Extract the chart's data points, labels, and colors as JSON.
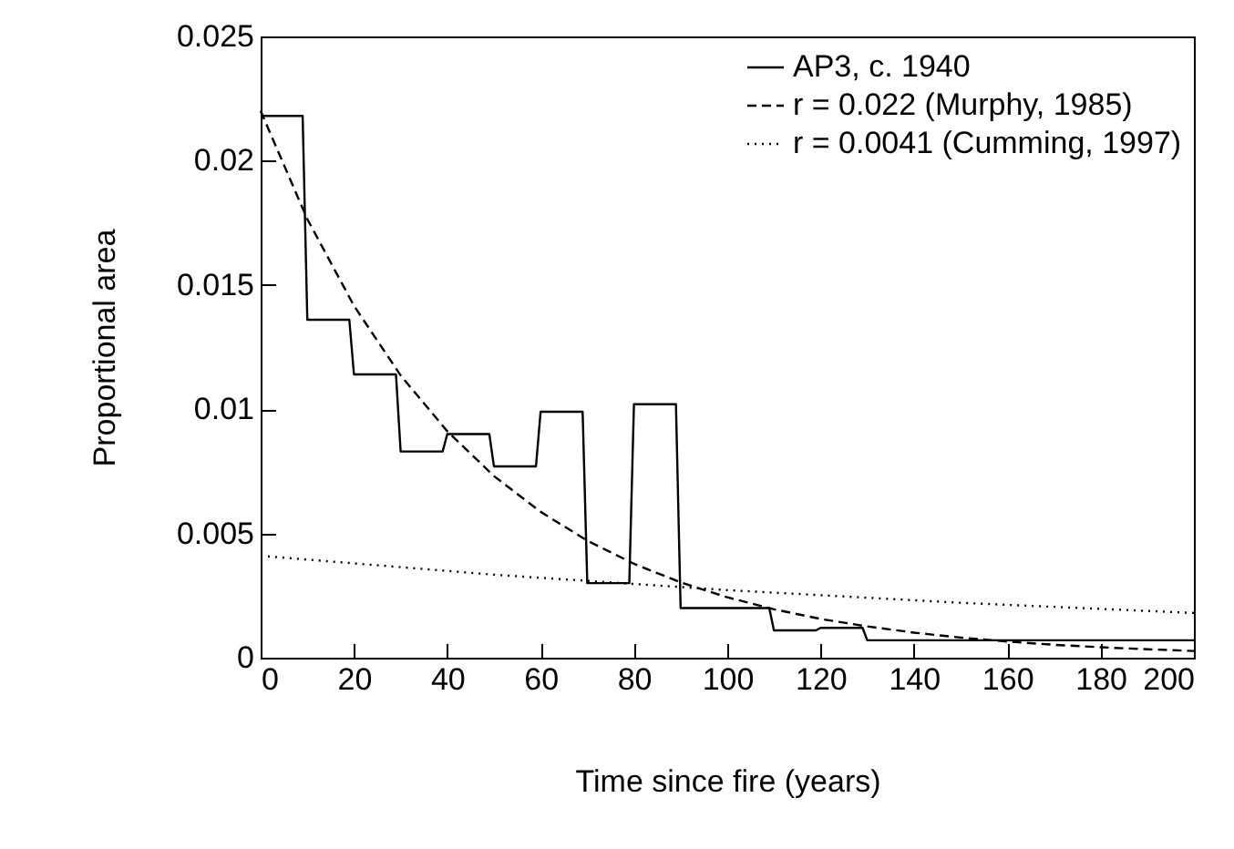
{
  "chart_data": {
    "type": "line",
    "xlabel": "Time since fire (years)",
    "ylabel": "Proportional area",
    "xlim": [
      0,
      200
    ],
    "xticks": [
      0,
      20,
      40,
      60,
      80,
      100,
      120,
      140,
      160,
      180,
      200
    ],
    "ylim": [
      0,
      0.025
    ],
    "yticks": [
      0,
      0.005,
      0.01,
      0.015,
      0.02,
      0.025
    ],
    "grid": false,
    "legend": "top right",
    "marker": "none",
    "series": [
      {
        "name": "AP3, c. 1940",
        "color": "#000000",
        "line_style": "solid",
        "x": [
          0,
          9,
          10,
          19,
          20,
          29,
          30,
          39,
          40,
          49,
          50,
          59,
          60,
          69,
          70,
          79,
          80,
          89,
          90,
          109,
          110,
          119,
          120,
          129,
          130,
          200
        ],
        "values": [
          0.0218,
          0.0218,
          0.0136,
          0.0136,
          0.0114,
          0.0114,
          0.0083,
          0.0083,
          0.009,
          0.009,
          0.0077,
          0.0077,
          0.0099,
          0.0099,
          0.003,
          0.003,
          0.0102,
          0.0102,
          0.002,
          0.002,
          0.0011,
          0.0011,
          0.0012,
          0.0012,
          0.0007,
          0.0007
        ]
      },
      {
        "name": "r = 0.022 (Murphy, 1985)",
        "color": "#000000",
        "line_style": "dashed",
        "x": [
          0,
          10,
          20,
          30,
          40,
          50,
          60,
          70,
          80,
          90,
          100,
          110,
          120,
          130,
          140,
          150,
          160,
          170,
          180,
          190,
          200
        ],
        "values": [
          0.022,
          0.01765,
          0.01416,
          0.01136,
          0.00911,
          0.00731,
          0.00587,
          0.00471,
          0.00378,
          0.00303,
          0.00243,
          0.00195,
          0.00156,
          0.00126,
          0.00101,
          0.00081,
          0.00065,
          0.00052,
          0.00042,
          0.00034,
          0.00027
        ]
      },
      {
        "name": "r = 0.0041 (Cumming, 1997)",
        "color": "#000000",
        "line_style": "dotted",
        "x": [
          0,
          50,
          100,
          150,
          200
        ],
        "values": [
          0.0041,
          0.00334,
          0.00272,
          0.00221,
          0.0018
        ]
      }
    ]
  }
}
